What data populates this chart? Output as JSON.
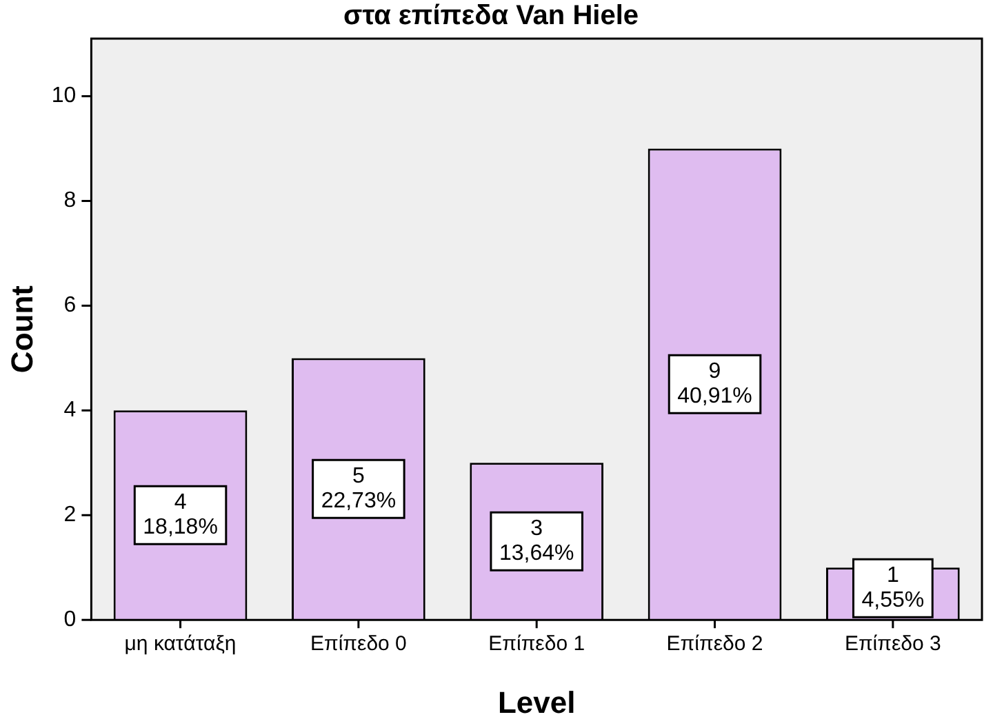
{
  "chart_data": {
    "type": "bar",
    "title": "στα επίπεδα Van Hiele",
    "xlabel": "Level",
    "ylabel": "Count",
    "categories": [
      "μη κατάταξη",
      "Επίπεδο 0",
      "Επίπεδο 1",
      "Επίπεδο 2",
      "Επίπεδο 3"
    ],
    "values": [
      4,
      5,
      3,
      9,
      1
    ],
    "color": "#dfbcf0",
    "value_labels": [
      "4\n18,18%",
      "5\n22,73%",
      "3\n13,64%",
      "9\n40,91%",
      "1\n4,55%"
    ],
    "ylim": [
      0,
      11.1
    ],
    "yticks": [
      0,
      2,
      4,
      6,
      8,
      10
    ],
    "grid": false,
    "legend": false
  }
}
